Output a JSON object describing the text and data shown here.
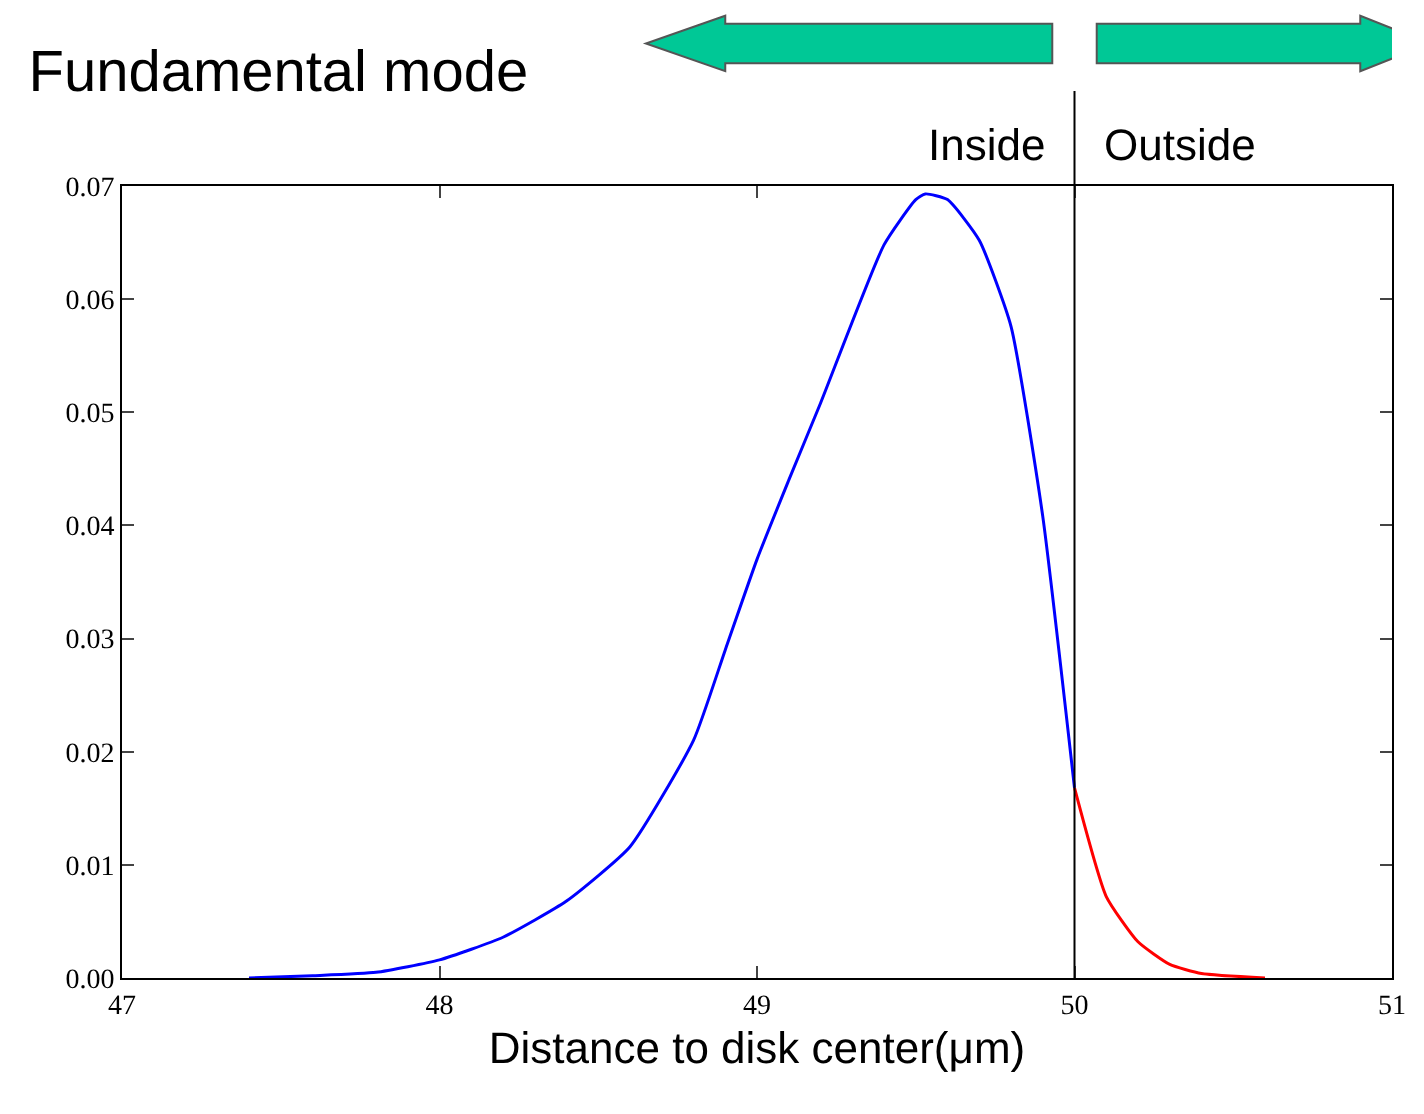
{
  "chart_data": {
    "type": "line",
    "title": "Fundamental mode",
    "xlabel": "Distance to disk center(μm)",
    "series": [
      {
        "color": "#0000ff",
        "x": [
          47.4,
          47.6,
          47.8,
          48.0,
          48.2,
          48.4,
          48.6,
          48.8,
          48.9,
          49.0,
          49.1,
          49.2,
          49.4,
          49.5,
          49.53,
          49.6,
          49.7,
          49.8,
          49.9,
          50.0
        ],
        "values": [
          0.0,
          0.0002,
          0.0005,
          0.0016,
          0.0036,
          0.0068,
          0.0116,
          0.021,
          0.029,
          0.037,
          0.044,
          0.0508,
          0.0648,
          0.0688,
          0.0693,
          0.0688,
          0.0652,
          0.0576,
          0.0408,
          0.0168
        ]
      },
      {
        "color": "#ff0000",
        "x": [
          50.0,
          50.1,
          50.2,
          50.3,
          50.4,
          50.6
        ],
        "values": [
          0.0168,
          0.0072,
          0.0032,
          0.0012,
          0.0004,
          0.0
        ]
      }
    ],
    "xlim": [
      47,
      51
    ],
    "xticks": [
      47,
      48,
      49,
      50,
      51
    ],
    "ylim": [
      0,
      0.07
    ],
    "yticks": [
      {
        "value": 0,
        "label": "0.00"
      },
      {
        "value": 0.01,
        "label": "0.01"
      },
      {
        "value": 0.02,
        "label": "0.02"
      },
      {
        "value": 0.03,
        "label": "0.03"
      },
      {
        "value": 0.04,
        "label": "0.04"
      },
      {
        "value": 0.05,
        "label": "0.05"
      },
      {
        "value": 0.06,
        "label": "0.06"
      },
      {
        "value": 0.07,
        "label": "0.07"
      }
    ],
    "ref_lines": [
      {
        "axis": "x",
        "value": 50,
        "color": "#000000"
      }
    ],
    "annotations": [
      "Inside",
      "Outside"
    ],
    "marker": "none",
    "line_style": "solid"
  }
}
